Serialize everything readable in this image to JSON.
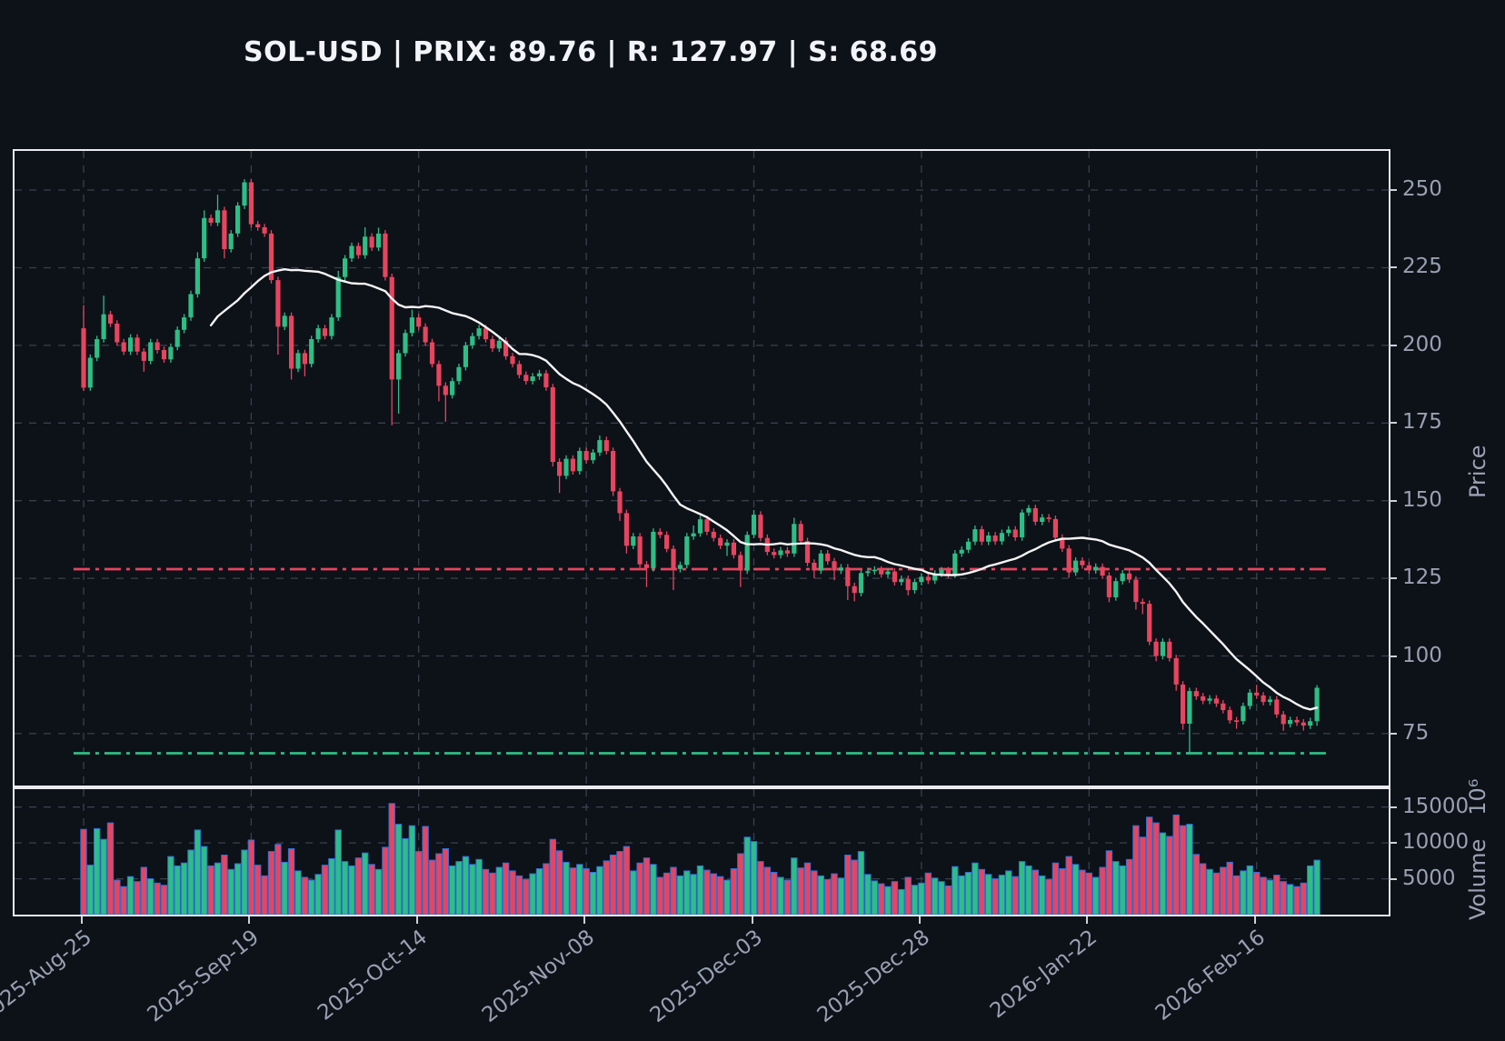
{
  "title": "SOL-USD | PRIX: 89.76 | R: 127.97 | S: 68.69",
  "symbol": "SOL-USD",
  "last_price": 89.76,
  "levels": {
    "resistance": 127.97,
    "support": 68.69
  },
  "colors": {
    "background": "#0d1118",
    "panel_border": "#e9ebee",
    "grid": "#39404e",
    "up": "#2ebd85",
    "down": "#e8445f",
    "ma_line": "#f4f4f4",
    "resistance_line": "#e8445f",
    "support_line": "#2ebd85",
    "volume_bar_edge": "#2e6fd8",
    "tick_text": "#98a1b2",
    "title_text": "#f2f4f8"
  },
  "price_axis": {
    "label": "Price",
    "ticks": [
      250,
      225,
      200,
      175,
      150,
      125,
      100,
      75
    ]
  },
  "volume_axis": {
    "label": "Volume",
    "unit": "10⁶",
    "ticks": [
      15000,
      10000,
      5000
    ]
  },
  "x_axis": {
    "tick_labels": [
      "2025-Aug-25",
      "2025-Sep-19",
      "2025-Oct-14",
      "2025-Nov-08",
      "2025-Dec-03",
      "2025-Dec-28",
      "2026-Jan-22",
      "2026-Feb-16"
    ],
    "tick_days": [
      0,
      25,
      50,
      75,
      100,
      125,
      150,
      175
    ]
  },
  "ma": {
    "window": 20
  },
  "chart_data": {
    "type": "candlestick+volume",
    "symbol": "SOL-USD",
    "start_date": "2025-08-25",
    "freq": "daily",
    "xlim_days": [
      -10.3,
      194.7
    ],
    "ylim": [
      58.3,
      262.6
    ],
    "volume_ylim": [
      0,
      17500
    ],
    "open_first": 205.5,
    "wick_default": 1.1,
    "close": [
      186.4,
      196,
      202,
      210,
      207,
      201,
      198,
      202.5,
      198,
      195,
      201,
      198.5,
      195.5,
      199.5,
      205,
      209,
      216.5,
      228,
      241,
      239.5,
      243.5,
      231,
      236,
      245,
      252.5,
      239,
      238,
      236,
      221,
      206,
      209.5,
      192.5,
      197.5,
      194,
      202,
      205.5,
      203,
      209,
      222,
      228,
      232,
      229,
      235,
      231.5,
      236,
      222,
      189,
      197.5,
      204,
      209,
      206,
      201,
      194,
      187,
      184,
      188.5,
      193,
      200,
      203,
      205.5,
      202,
      199,
      201.5,
      196.5,
      194,
      190.5,
      188.5,
      190,
      191,
      186.5,
      162.5,
      158,
      163.5,
      159.5,
      166,
      163,
      165.5,
      169.5,
      166,
      153,
      146,
      135.5,
      138.5,
      129.5,
      128.3,
      140,
      139,
      134.5,
      128,
      129.3,
      138.5,
      139.5,
      144,
      140,
      138,
      135.5,
      136.5,
      132.5,
      127.5,
      139,
      145.5,
      138,
      133.5,
      132.5,
      134,
      133,
      142.5,
      137,
      130,
      127.5,
      133,
      130.5,
      127.5,
      128.5,
      122.5,
      120.3,
      126.7,
      127.3,
      127.8,
      126.3,
      127.2,
      123.8,
      124.8,
      121.2,
      123.8,
      125.5,
      124.3,
      126.5,
      127.6,
      126.2,
      133,
      134.2,
      136.8,
      140.8,
      136.8,
      138.8,
      136.9,
      139.6,
      140.7,
      138.2,
      146.2,
      147.6,
      143.2,
      144.6,
      144.1,
      138.1,
      134.6,
      126.9,
      130.7,
      129.2,
      127.6,
      128.7,
      125.9,
      118.9,
      124.1,
      126.6,
      124.6,
      117.4,
      116.8,
      104.6,
      100,
      104.6,
      99.3,
      90.8,
      78.2,
      88.7,
      87,
      85.6,
      86.3,
      84.7,
      82.6,
      79.3,
      79,
      83.9,
      88.2,
      87.3,
      85.2,
      86,
      81.2,
      78.1,
      79.4,
      78.6,
      77.6,
      79,
      89.76
    ],
    "high_overrides": {
      "0": 213,
      "3": 216,
      "17": 230,
      "18": 243.5,
      "20": 248.5,
      "24": 253.5,
      "38": 224,
      "42": 238,
      "44": 237.9,
      "49": 211.5,
      "77": 171,
      "91": 142,
      "100": 147,
      "106": 144.5,
      "133": 142,
      "140": 147.2,
      "141": 148.6,
      "175": 90.7,
      "184": 90.6
    },
    "low_overrides": {
      "1": 185.4,
      "9": 191.5,
      "21": 228,
      "29": 197,
      "31": 189,
      "33": 190,
      "46": 174.3,
      "47": 178,
      "53": 182,
      "54": 175.4,
      "70": 161,
      "71": 152.5,
      "79": 151.5,
      "80": 143.5,
      "81": 133,
      "84": 122.2,
      "88": 121.2,
      "96": 132.2,
      "98": 122.2,
      "109": 125,
      "112": 124.4,
      "114": 118,
      "115": 117.6,
      "123": 119.5,
      "147": 125.2,
      "153": 117.3,
      "157": 114.9,
      "158": 113.5,
      "160": 98.3,
      "163": 88.8,
      "164": 76.3,
      "165": 68.69,
      "172": 76.6,
      "179": 75.9,
      "182": 76,
      "184": 77.5
    },
    "volume": [
      11900,
      6900,
      12000,
      10500,
      12800,
      4800,
      3900,
      5300,
      4600,
      6600,
      5000,
      4400,
      4100,
      8100,
      6800,
      7200,
      9000,
      11800,
      9500,
      6800,
      7200,
      8300,
      6300,
      7100,
      9000,
      10400,
      6900,
      5400,
      8800,
      9800,
      7300,
      9200,
      6100,
      5200,
      4800,
      5600,
      6900,
      7800,
      11800,
      7400,
      6800,
      7900,
      8600,
      7000,
      6300,
      9400,
      15500,
      12600,
      10600,
      12400,
      8800,
      12300,
      7600,
      8500,
      9200,
      6800,
      7400,
      8100,
      7000,
      7700,
      6300,
      5800,
      6600,
      7200,
      6100,
      5400,
      4900,
      5700,
      6400,
      7100,
      10500,
      8900,
      7300,
      6500,
      7000,
      6400,
      5900,
      6700,
      7500,
      8300,
      8800,
      9500,
      6100,
      7200,
      7900,
      7000,
      5200,
      5800,
      6600,
      5400,
      6100,
      5600,
      6800,
      6200,
      5700,
      5300,
      4800,
      6400,
      8500,
      10800,
      10200,
      7400,
      6600,
      5900,
      5200,
      4800,
      7900,
      6500,
      7200,
      6100,
      5400,
      4900,
      5700,
      5100,
      8300,
      7600,
      8800,
      5600,
      4700,
      4300,
      3900,
      4600,
      3500,
      5200,
      4100,
      4400,
      5800,
      5100,
      4600,
      4000,
      6700,
      5400,
      5900,
      7200,
      6300,
      5600,
      5000,
      5500,
      6100,
      5300,
      7400,
      6800,
      6200,
      5400,
      4900,
      7200,
      6400,
      8100,
      7000,
      6200,
      5800,
      5200,
      6600,
      8900,
      7400,
      6800,
      7700,
      12400,
      10800,
      13600,
      12800,
      11400,
      10900,
      13900,
      12400,
      12600,
      8400,
      7100,
      6300,
      5800,
      6600,
      7300,
      5400,
      6100,
      6800,
      5900,
      5200,
      4800,
      5500,
      4600,
      4200,
      3900,
      4400,
      6800,
      7600
    ]
  }
}
